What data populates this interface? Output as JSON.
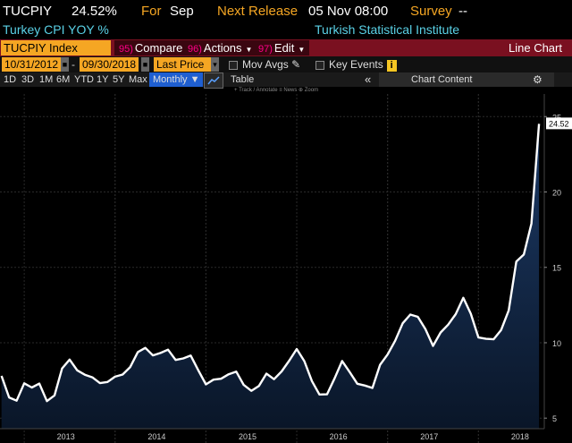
{
  "header": {
    "ticker": "TUCPIY",
    "value": "24.52%",
    "for_label": "For",
    "period": "Sep",
    "next_release_label": "Next Release",
    "next_release": "05 Nov 08:00",
    "survey_label": "Survey",
    "survey_value": "--"
  },
  "subheader": {
    "name": "Turkey CPI YOY %",
    "source": "Turkish Statistical Institute"
  },
  "toolbar": {
    "security": "TUCPIY Index",
    "compare_num": "95)",
    "compare": "Compare",
    "actions_num": "96)",
    "actions": "Actions",
    "edit_num": "97)",
    "edit": "Edit",
    "chart_type": "Line Chart"
  },
  "range": {
    "start": "10/31/2012",
    "end": "09/30/2018",
    "field": "Last Price",
    "mov_avgs": "Mov Avgs",
    "key_events": "Key Events",
    "info_icon": "i"
  },
  "periods": {
    "items": [
      "1D",
      "3D",
      "1M",
      "6M",
      "YTD",
      "1Y",
      "5Y",
      "Max"
    ],
    "frequency": "Monthly",
    "table": "Table",
    "collapse": "«",
    "chart_content": "Chart Content"
  },
  "tools": "+ Track   / Annotate   ≡ News   ⊕ Zoom",
  "chart_data": {
    "type": "line",
    "x_tick_labels": [
      "2013",
      "2014",
      "2015",
      "2016",
      "2017",
      "2018"
    ],
    "y_ticks": [
      5,
      10,
      15,
      20,
      25
    ],
    "ylim": [
      4.3,
      26.5
    ],
    "last_value_label": "24.52",
    "grid": true,
    "colors": {
      "line": "#ffffff",
      "fill_top": "#1c3a66",
      "fill_bottom": "#0a1628",
      "grid": "#2a2a2a"
    },
    "series": [
      {
        "dates": [
          "2012-10",
          "2012-11",
          "2012-12",
          "2013-01",
          "2013-02",
          "2013-03",
          "2013-04",
          "2013-05",
          "2013-06",
          "2013-07",
          "2013-08",
          "2013-09",
          "2013-10",
          "2013-11",
          "2013-12",
          "2014-01",
          "2014-02",
          "2014-03",
          "2014-04",
          "2014-05",
          "2014-06",
          "2014-07",
          "2014-08",
          "2014-09",
          "2014-10",
          "2014-11",
          "2014-12",
          "2015-01",
          "2015-02",
          "2015-03",
          "2015-04",
          "2015-05",
          "2015-06",
          "2015-07",
          "2015-08",
          "2015-09",
          "2015-10",
          "2015-11",
          "2015-12",
          "2016-01",
          "2016-02",
          "2016-03",
          "2016-04",
          "2016-05",
          "2016-06",
          "2016-07",
          "2016-08",
          "2016-09",
          "2016-10",
          "2016-11",
          "2016-12",
          "2017-01",
          "2017-02",
          "2017-03",
          "2017-04",
          "2017-05",
          "2017-06",
          "2017-07",
          "2017-08",
          "2017-09",
          "2017-10",
          "2017-11",
          "2017-12",
          "2018-01",
          "2018-02",
          "2018-03",
          "2018-04",
          "2018-05",
          "2018-06",
          "2018-07",
          "2018-08",
          "2018-09"
        ],
        "values": [
          7.8,
          6.37,
          6.16,
          7.31,
          7.03,
          7.29,
          6.13,
          6.51,
          8.3,
          8.88,
          8.17,
          7.88,
          7.71,
          7.32,
          7.4,
          7.75,
          7.89,
          8.39,
          9.38,
          9.66,
          9.16,
          9.32,
          9.54,
          8.86,
          8.96,
          9.15,
          8.17,
          7.24,
          7.55,
          7.61,
          7.91,
          8.09,
          7.2,
          6.81,
          7.14,
          7.95,
          7.58,
          8.1,
          8.81,
          9.58,
          8.78,
          7.46,
          6.57,
          6.58,
          7.64,
          8.79,
          8.05,
          7.28,
          7.16,
          7.0,
          8.53,
          9.22,
          10.13,
          11.29,
          11.87,
          11.72,
          10.9,
          9.79,
          10.68,
          11.2,
          11.9,
          12.98,
          11.92,
          10.35,
          10.26,
          10.23,
          10.85,
          12.15,
          15.39,
          15.85,
          17.9,
          24.52
        ]
      }
    ]
  }
}
